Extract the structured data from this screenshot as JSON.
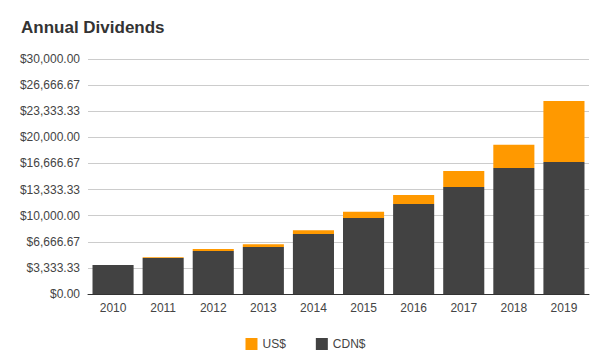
{
  "chart_data": {
    "type": "bar",
    "title": "Annual Dividends",
    "categories": [
      "2010",
      "2011",
      "2012",
      "2013",
      "2014",
      "2015",
      "2016",
      "2017",
      "2018",
      "2019"
    ],
    "series": [
      {
        "name": "CDN$",
        "color": "#424242",
        "values": [
          3700,
          4600,
          5500,
          6000,
          7650,
          9700,
          11500,
          13650,
          16100,
          16850
        ]
      },
      {
        "name": "US$",
        "color": "#ff9900",
        "values": [
          0,
          100,
          250,
          350,
          500,
          800,
          1150,
          2050,
          2950,
          7800
        ]
      }
    ],
    "stacked": true,
    "ylim": [
      0,
      30000
    ],
    "yticks": [
      {
        "value": 0,
        "label": "$0.00"
      },
      {
        "value": 3333.33,
        "label": "$3,333.33"
      },
      {
        "value": 6666.67,
        "label": "$6,666.67"
      },
      {
        "value": 10000,
        "label": "$10,000.00"
      },
      {
        "value": 13333.33,
        "label": "$13,333.33"
      },
      {
        "value": 16666.67,
        "label": "$16,666.67"
      },
      {
        "value": 20000,
        "label": "$20,000.00"
      },
      {
        "value": 23333.33,
        "label": "$23,333.33"
      },
      {
        "value": 26666.67,
        "label": "$26,666.67"
      },
      {
        "value": 30000,
        "label": "$30,000.00"
      }
    ],
    "grid": true,
    "legend": "bottom"
  }
}
